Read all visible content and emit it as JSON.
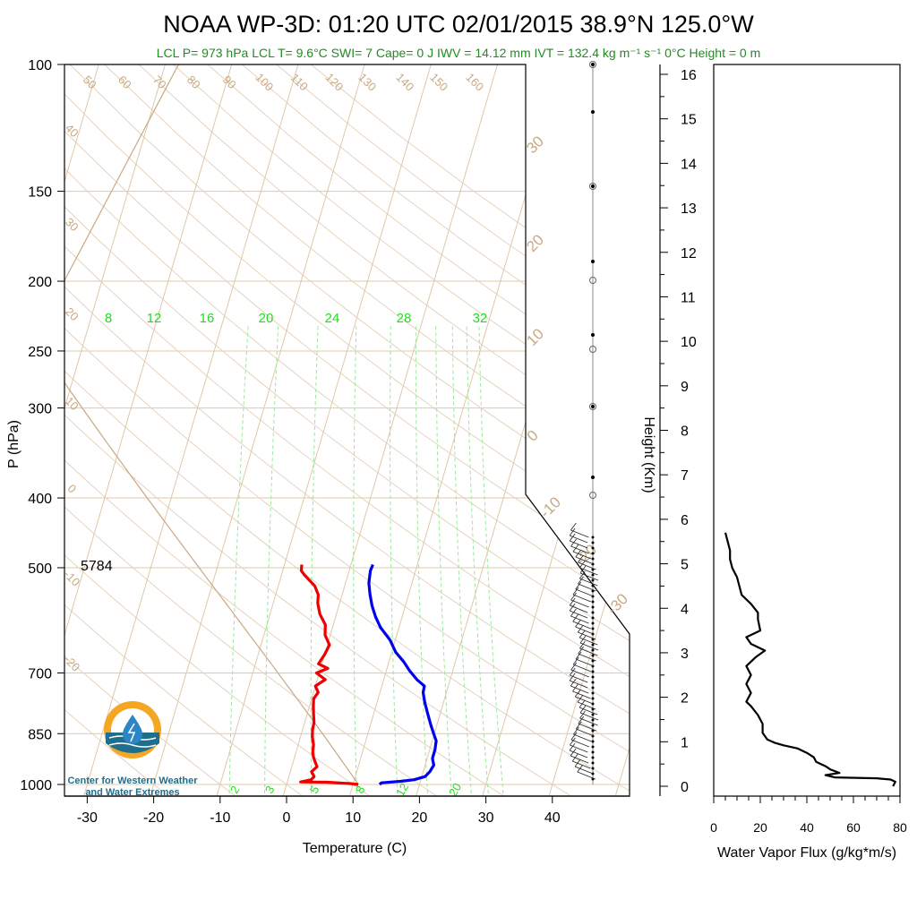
{
  "title_text": "NOAA WP-3D: 01:20 UTC 02/01/2015  38.9°N 125.0°W",
  "subtitle_text": "LCL P= 973 hPa  LCL T= 9.6°C  SWI= 7  Cape= 0 J  IWV = 14.12 mm  IVT = 132.4 kg m⁻¹ s⁻¹  0°C Height = 0 m",
  "colors": {
    "temperature": "#ee0000",
    "dewpoint": "#0000ee",
    "dry_adiabat": "#c8a882",
    "mixing_ratio": "#22dd22",
    "flux": "#000000",
    "subtitle": "#228b22"
  },
  "logo": {
    "line1": "Center for Western Weather",
    "line2": "and Water Extremes",
    "icon": "water-drop-logo-icon"
  },
  "height_500": "5784",
  "chart_data": [
    {
      "type": "line",
      "name": "skew-t",
      "xlabel": "Temperature (C)",
      "ylabel": "P (hPa)",
      "xlim": [
        -33,
        52
      ],
      "ylim": [
        1050,
        100
      ],
      "y_scale": "log",
      "x_ticks": [
        "-30",
        "-20",
        "-10",
        "0",
        "10",
        "20",
        "30",
        "40"
      ],
      "y_ticks": [
        "100",
        "150",
        "200",
        "250",
        "300",
        "400",
        "500",
        "700",
        "850",
        "1000"
      ],
      "dry_adiabat_labels": [
        "50",
        "60",
        "70",
        "80",
        "90",
        "100",
        "110",
        "120",
        "130",
        "140",
        "150",
        "160"
      ],
      "left_labels": [
        "40",
        "30",
        "20",
        "10",
        "0",
        "-10",
        "-20"
      ],
      "right_labels": [
        "30",
        "20",
        "10",
        "0",
        "-10",
        "-20",
        "-30"
      ],
      "mixing_ratio_top": [
        "8",
        "12",
        "16",
        "20",
        "24",
        "28",
        "32"
      ],
      "mixing_ratio_bottom": [
        "2",
        "3",
        "5",
        "8",
        "12",
        "20"
      ],
      "series": [
        {
          "name": "temperature",
          "points": [
            [
              10.8,
              1000
            ],
            [
              9.5,
              997
            ],
            [
              6,
              993
            ],
            [
              2,
              992
            ],
            [
              3.5,
              985
            ],
            [
              3.8,
              975
            ],
            [
              3.2,
              960
            ],
            [
              3.8,
              945
            ],
            [
              3.3,
              930
            ],
            [
              2.8,
              915
            ],
            [
              2.5,
              900
            ],
            [
              2.3,
              880
            ],
            [
              1.8,
              860
            ],
            [
              1.5,
              840
            ],
            [
              1.4,
              820
            ],
            [
              1.0,
              800
            ],
            [
              0.6,
              780
            ],
            [
              0.3,
              760
            ],
            [
              0.7,
              745
            ],
            [
              0,
              730
            ],
            [
              1.2,
              715
            ],
            [
              -0.4,
              700
            ],
            [
              1.1,
              690
            ],
            [
              -0.5,
              680
            ],
            [
              0,
              660
            ],
            [
              0.3,
              640
            ],
            [
              -0.8,
              620
            ],
            [
              -1.2,
              600
            ],
            [
              -2.5,
              580
            ],
            [
              -3.3,
              560
            ],
            [
              -3.6,
              545
            ],
            [
              -4.5,
              530
            ],
            [
              -6.5,
              512
            ],
            [
              -7.2,
              505
            ],
            [
              -7.4,
              495
            ]
          ]
        },
        {
          "name": "dewpoint",
          "points": [
            [
              14,
              1000
            ],
            [
              14.2,
              995
            ],
            [
              17,
              990
            ],
            [
              19,
              985
            ],
            [
              20.5,
              975
            ],
            [
              21,
              960
            ],
            [
              21.3,
              940
            ],
            [
              20.8,
              920
            ],
            [
              20.8,
              895
            ],
            [
              20.6,
              870
            ],
            [
              19.9,
              850
            ],
            [
              19.2,
              830
            ],
            [
              18.2,
              800
            ],
            [
              17.2,
              770
            ],
            [
              16.5,
              745
            ],
            [
              16.4,
              730
            ],
            [
              15,
              715
            ],
            [
              13.5,
              695
            ],
            [
              12.2,
              675
            ],
            [
              10.6,
              655
            ],
            [
              9.2,
              630
            ],
            [
              7.2,
              605
            ],
            [
              6,
              585
            ],
            [
              5,
              565
            ],
            [
              4.2,
              545
            ],
            [
              3.5,
              525
            ],
            [
              3.2,
              505
            ],
            [
              3.3,
              495
            ]
          ]
        }
      ]
    },
    {
      "type": "line",
      "name": "water-vapor-flux",
      "xlabel": "Water Vapor Flux (g/kg*m/s)",
      "ylabel": "Height (Km)",
      "xlim": [
        0,
        80
      ],
      "ylim": [
        -0.3,
        16.5
      ],
      "x_ticks": [
        "0",
        "20",
        "40",
        "60",
        "80"
      ],
      "y_ticks": [
        "0",
        "1",
        "2",
        "3",
        "4",
        "5",
        "6",
        "7",
        "8",
        "9",
        "10",
        "11",
        "12",
        "13",
        "14",
        "15",
        "16"
      ],
      "series": [
        {
          "name": "flux",
          "points": [
            [
              77,
              0
            ],
            [
              78,
              0.1
            ],
            [
              76,
              0.15
            ],
            [
              70,
              0.18
            ],
            [
              52,
              0.2
            ],
            [
              48,
              0.25
            ],
            [
              54,
              0.3
            ],
            [
              50,
              0.38
            ],
            [
              48,
              0.45
            ],
            [
              44,
              0.55
            ],
            [
              43,
              0.65
            ],
            [
              40,
              0.75
            ],
            [
              36,
              0.85
            ],
            [
              30,
              0.92
            ],
            [
              26,
              0.98
            ],
            [
              23,
              1.05
            ],
            [
              21,
              1.2
            ],
            [
              21,
              1.4
            ],
            [
              19,
              1.6
            ],
            [
              16,
              1.8
            ],
            [
              14,
              1.9
            ],
            [
              16,
              2.1
            ],
            [
              14,
              2.3
            ],
            [
              16,
              2.5
            ],
            [
              14,
              2.7
            ],
            [
              18,
              2.9
            ],
            [
              22,
              3.05
            ],
            [
              16,
              3.2
            ],
            [
              14,
              3.35
            ],
            [
              20,
              3.5
            ],
            [
              19,
              3.75
            ],
            [
              19,
              3.9
            ],
            [
              16,
              4.1
            ],
            [
              12,
              4.3
            ],
            [
              11,
              4.5
            ],
            [
              10,
              4.7
            ],
            [
              8,
              4.9
            ],
            [
              7,
              5.1
            ],
            [
              7,
              5.3
            ],
            [
              6,
              5.5
            ],
            [
              5,
              5.7
            ]
          ]
        }
      ]
    }
  ]
}
